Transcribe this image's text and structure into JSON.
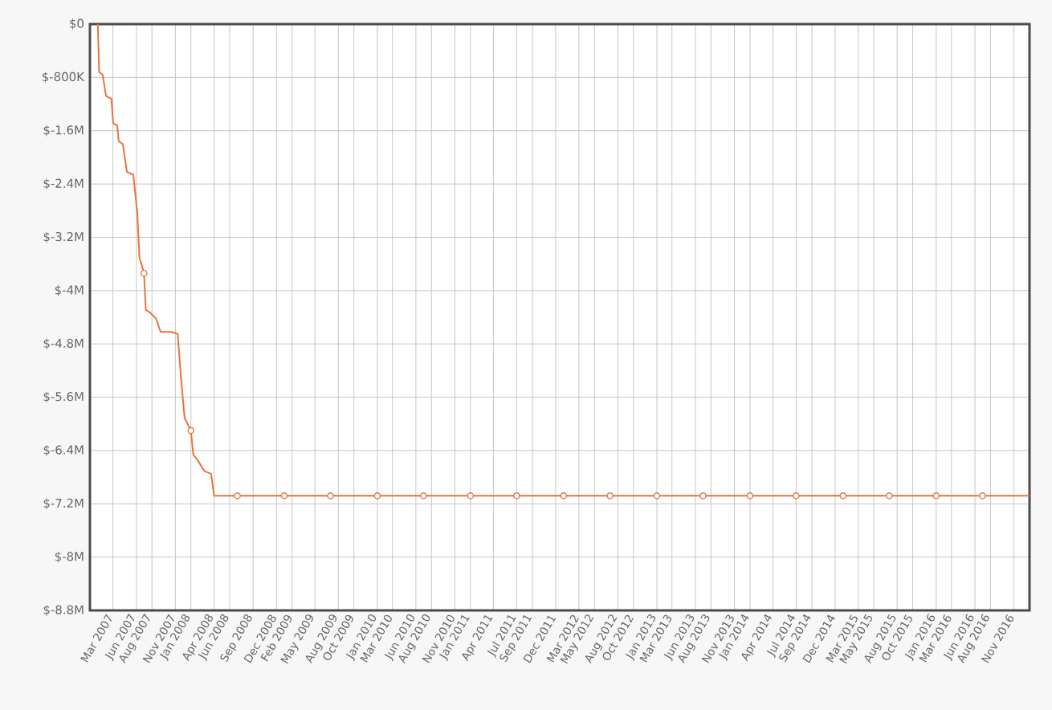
{
  "chart_data": {
    "type": "line",
    "grid": true,
    "xlim": [
      "2006-12-01",
      "2017-01-01"
    ],
    "xticks": [
      {
        "value": "2007-03",
        "label": "Mar 2007"
      },
      {
        "value": "2007-06",
        "label": "Jun 2007"
      },
      {
        "value": "2007-08",
        "label": "Aug 2007"
      },
      {
        "value": "2007-11",
        "label": "Nov 2007"
      },
      {
        "value": "2008-01",
        "label": "Jan 2008"
      },
      {
        "value": "2008-04",
        "label": "Apr 2008"
      },
      {
        "value": "2008-06",
        "label": "Jun 2008"
      },
      {
        "value": "2008-09",
        "label": "Sep 2008"
      },
      {
        "value": "2008-12",
        "label": "Dec 2008"
      },
      {
        "value": "2009-02",
        "label": "Feb 2009"
      },
      {
        "value": "2009-05",
        "label": "May 2009"
      },
      {
        "value": "2009-08",
        "label": "Aug 2009"
      },
      {
        "value": "2009-10",
        "label": "Oct 2009"
      },
      {
        "value": "2010-01",
        "label": "Jan 2010"
      },
      {
        "value": "2010-03",
        "label": "Mar 2010"
      },
      {
        "value": "2010-06",
        "label": "Jun 2010"
      },
      {
        "value": "2010-08",
        "label": "Aug 2010"
      },
      {
        "value": "2010-11",
        "label": "Nov 2010"
      },
      {
        "value": "2011-01",
        "label": "Jan 2011"
      },
      {
        "value": "2011-04",
        "label": "Apr 2011"
      },
      {
        "value": "2011-07",
        "label": "Jul 2011"
      },
      {
        "value": "2011-09",
        "label": "Sep 2011"
      },
      {
        "value": "2011-12",
        "label": "Dec 2011"
      },
      {
        "value": "2012-03",
        "label": "Mar 2012"
      },
      {
        "value": "2012-05",
        "label": "May 2012"
      },
      {
        "value": "2012-08",
        "label": "Aug 2012"
      },
      {
        "value": "2012-10",
        "label": "Oct 2012"
      },
      {
        "value": "2013-01",
        "label": "Jan 2013"
      },
      {
        "value": "2013-03",
        "label": "Mar 2013"
      },
      {
        "value": "2013-06",
        "label": "Jun 2013"
      },
      {
        "value": "2013-08",
        "label": "Aug 2013"
      },
      {
        "value": "2013-11",
        "label": "Nov 2013"
      },
      {
        "value": "2014-01",
        "label": "Jan 2014"
      },
      {
        "value": "2014-04",
        "label": "Apr 2014"
      },
      {
        "value": "2014-07",
        "label": "Jul 2014"
      },
      {
        "value": "2014-09",
        "label": "Sep 2014"
      },
      {
        "value": "2014-12",
        "label": "Dec 2014"
      },
      {
        "value": "2015-03",
        "label": "Mar 2015"
      },
      {
        "value": "2015-05",
        "label": "May 2015"
      },
      {
        "value": "2015-08",
        "label": "Aug 2015"
      },
      {
        "value": "2015-10",
        "label": "Oct 2015"
      },
      {
        "value": "2016-01",
        "label": "Jan 2016"
      },
      {
        "value": "2016-03",
        "label": "Mar 2016"
      },
      {
        "value": "2016-06",
        "label": "Jun 2016"
      },
      {
        "value": "2016-08",
        "label": "Aug 2016"
      },
      {
        "value": "2016-11",
        "label": "Nov 2016"
      }
    ],
    "ylim": [
      -8800000,
      0
    ],
    "yticks": [
      {
        "value": 0,
        "label": "$0"
      },
      {
        "value": -800000,
        "label": "$-800K"
      },
      {
        "value": -1600000,
        "label": "$-1.6M"
      },
      {
        "value": -2400000,
        "label": "$-2.4M"
      },
      {
        "value": -3200000,
        "label": "$-3.2M"
      },
      {
        "value": -4000000,
        "label": "$-4M"
      },
      {
        "value": -4800000,
        "label": "$-4.8M"
      },
      {
        "value": -5600000,
        "label": "$-5.6M"
      },
      {
        "value": -6400000,
        "label": "$-6.4M"
      },
      {
        "value": -7200000,
        "label": "$-7.2M"
      },
      {
        "value": -8000000,
        "label": "$-8M"
      },
      {
        "value": -8800000,
        "label": "$-8.8M"
      }
    ],
    "series": [
      {
        "color": "#e8743b",
        "x": [
          "2007-01-01",
          "2007-01-06",
          "2007-01-20",
          "2007-02-02",
          "2007-02-23",
          "2007-03-02",
          "2007-03-18",
          "2007-03-24",
          "2007-04-09",
          "2007-04-25",
          "2007-05-20",
          "2007-06-05",
          "2007-06-13",
          "2007-07-01",
          "2007-07-08",
          "2007-07-25",
          "2007-08-17",
          "2007-09-04",
          "2007-10-16",
          "2007-11-10",
          "2007-11-22",
          "2007-12-07",
          "2008-01-01",
          "2008-01-10",
          "2008-01-28",
          "2008-02-23",
          "2008-03-20",
          "2008-04-01",
          "2017-01-01"
        ],
        "values": [
          0,
          -720000,
          -760000,
          -1080000,
          -1120000,
          -1490000,
          -1520000,
          -1760000,
          -1800000,
          -2220000,
          -2260000,
          -2850000,
          -3500000,
          -3740000,
          -4290000,
          -4330000,
          -4420000,
          -4620000,
          -4620000,
          -4650000,
          -5260000,
          -5910000,
          -6100000,
          -6460000,
          -6550000,
          -6710000,
          -6750000,
          -7080000,
          -7080000
        ]
      },
      {
        "type": "scatter",
        "marker": "circle",
        "color": "#e8743b",
        "x": [
          "2007-07-01",
          "2008-01-01",
          "2008-07-01",
          "2009-01-01",
          "2009-07-01",
          "2010-01-01",
          "2010-07-01",
          "2011-01-01",
          "2011-07-01",
          "2012-01-01",
          "2012-07-01",
          "2013-01-01",
          "2013-07-01",
          "2014-01-01",
          "2014-07-01",
          "2015-01-01",
          "2015-07-01",
          "2016-01-01",
          "2016-07-01"
        ],
        "values": [
          -3740000,
          -6100000,
          -7080000,
          -7080000,
          -7080000,
          -7080000,
          -7080000,
          -7080000,
          -7080000,
          -7080000,
          -7080000,
          -7080000,
          -7080000,
          -7080000,
          -7080000,
          -7080000,
          -7080000,
          -7080000,
          -7080000
        ]
      }
    ]
  }
}
